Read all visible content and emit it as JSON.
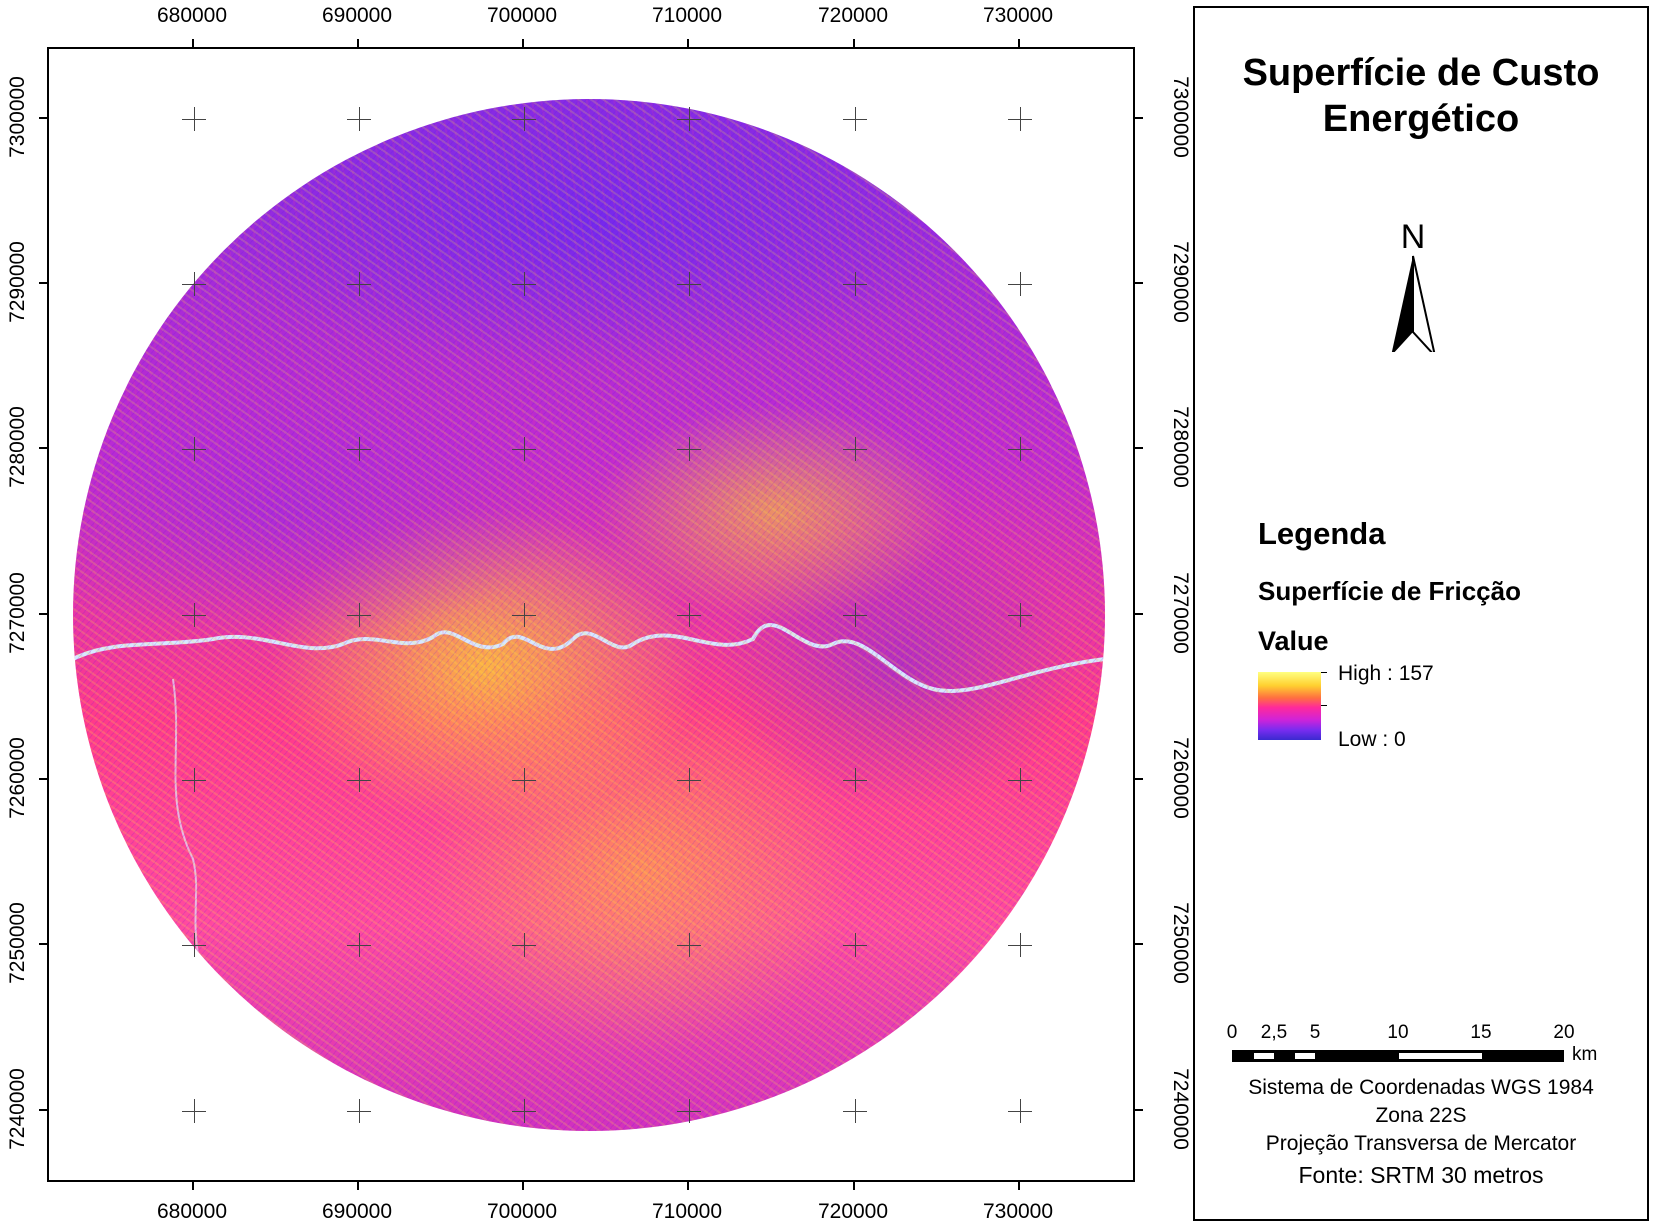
{
  "map": {
    "x_ticks": [
      "680000",
      "690000",
      "700000",
      "710000",
      "720000",
      "730000"
    ],
    "y_ticks": [
      "7300000",
      "7290000",
      "7280000",
      "7270000",
      "7260000",
      "7250000",
      "7240000"
    ],
    "colors": {
      "high": "#ffff80",
      "mid": "#ff2a9a",
      "low": "#3a2ad0",
      "river": "#d8e8ff"
    }
  },
  "panel": {
    "title_line1": "Superfície de Custo",
    "title_line2": "Energético",
    "north_label": "N",
    "legend_title": "Legenda",
    "legend_layer": "Superfície de Fricção",
    "legend_field": "Value",
    "legend_high": "High : 157",
    "legend_low": "Low : 0",
    "scale_labels": [
      "0",
      "2,5",
      "5",
      "10",
      "15",
      "20"
    ],
    "scale_unit": "km",
    "coord_system": "Sistema de Coordenadas WGS 1984",
    "zone": "Zona 22S",
    "projection": "Projeção Transversa de Mercator",
    "source": "Fonte: SRTM 30 metros"
  }
}
